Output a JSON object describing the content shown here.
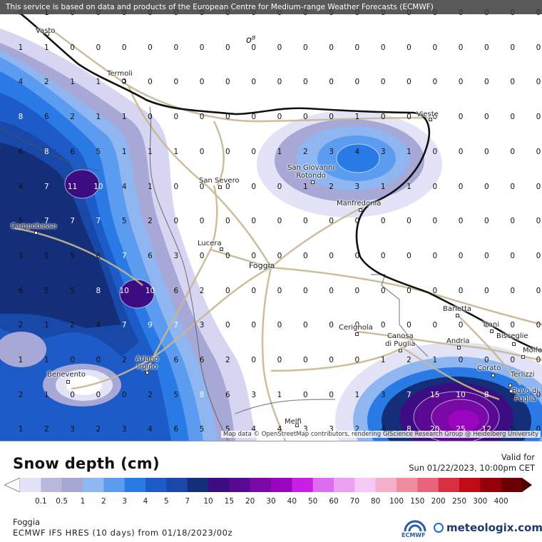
{
  "header": {
    "notice": "This service is based on data and products of the European Centre for Medium-range Weather Forecasts (ECMWF)"
  },
  "map": {
    "attribution": "Map data © OpenStreetMap contributors, rendering GIScience Research Group @ Heidelberg University",
    "cities": [
      {
        "name": "Vasto",
        "big": false
      },
      {
        "name": "Termoli",
        "big": false
      },
      {
        "name": "Vieste",
        "big": false
      },
      {
        "name": "San Giovanni\nRotondo",
        "big": false
      },
      {
        "name": "San Severo",
        "big": false
      },
      {
        "name": "Manfredonia",
        "big": false
      },
      {
        "name": "Campobasso",
        "big": false
      },
      {
        "name": "Lucera",
        "big": false
      },
      {
        "name": "Foggia",
        "big": true
      },
      {
        "name": "Barletta",
        "big": false
      },
      {
        "name": "Trani",
        "big": false
      },
      {
        "name": "Bisceglie",
        "big": false
      },
      {
        "name": "Molfe",
        "big": false
      },
      {
        "name": "Cerignola",
        "big": false
      },
      {
        "name": "Canosa\ndi Puglia",
        "big": false
      },
      {
        "name": "Andria",
        "big": false
      },
      {
        "name": "Benevento",
        "big": false
      },
      {
        "name": "Ariano\nIrpino",
        "big": false
      },
      {
        "name": "Corato",
        "big": false
      },
      {
        "name": "Terlizzi",
        "big": false
      },
      {
        "name": "Ruvo di\nPuglia",
        "big": false
      },
      {
        "name": "Melfi",
        "big": false
      }
    ],
    "grid_values": [
      [
        "0",
        "1",
        "0",
        "0",
        "0",
        "0",
        "0",
        "0",
        "0",
        "0",
        "0",
        "0",
        "0",
        "0",
        "0",
        "0",
        "0",
        "0",
        "0",
        "0",
        "0"
      ],
      [
        "1",
        "1",
        "0",
        "0",
        "0",
        "0",
        "0",
        "0",
        "0",
        "0",
        "0",
        "0",
        "0",
        "0",
        "0",
        "0",
        "0",
        "0",
        "0",
        "0",
        "0"
      ],
      [
        "4",
        "2",
        "1",
        "1",
        "0",
        "0",
        "0",
        "0",
        "0",
        "0",
        "0",
        "0",
        "0",
        "0",
        "0",
        "0",
        "0",
        "0",
        "0",
        "0",
        "0"
      ],
      [
        "8",
        "6",
        "2",
        "1",
        "1",
        "0",
        "0",
        "0",
        "0",
        "0",
        "0",
        "0",
        "0",
        "1",
        "0",
        "0",
        "0",
        "0",
        "0",
        "0",
        "0"
      ],
      [
        "6",
        "8",
        "6",
        "5",
        "1",
        "1",
        "1",
        "0",
        "0",
        "0",
        "1",
        "2",
        "3",
        "4",
        "3",
        "1",
        "0",
        "0",
        "0",
        "0",
        "0"
      ],
      [
        "4",
        "7",
        "11",
        "10",
        "4",
        "1",
        "0",
        "0",
        "0",
        "0",
        "0",
        "1",
        "2",
        "3",
        "1",
        "1",
        "0",
        "0",
        "0",
        "0",
        "0"
      ],
      [
        "5",
        "7",
        "7",
        "7",
        "5",
        "2",
        "0",
        "0",
        "0",
        "0",
        "0",
        "0",
        "0",
        "0",
        "0",
        "0",
        "0",
        "0",
        "0",
        "0",
        "0"
      ],
      [
        "3",
        "5",
        "5",
        "6",
        "7",
        "6",
        "3",
        "0",
        "0",
        "0",
        "0",
        "0",
        "0",
        "0",
        "0",
        "0",
        "0",
        "0",
        "0",
        "0",
        "0"
      ],
      [
        "6",
        "5",
        "5",
        "8",
        "10",
        "10",
        "6",
        "2",
        "0",
        "0",
        "0",
        "0",
        "0",
        "0",
        "0",
        "0",
        "0",
        "0",
        "0",
        "0",
        "0"
      ],
      [
        "2",
        "1",
        "2",
        "4",
        "7",
        "9",
        "7",
        "3",
        "0",
        "0",
        "0",
        "0",
        "0",
        "0",
        "0",
        "0",
        "0",
        "0",
        "0",
        "0",
        "0"
      ],
      [
        "1",
        "1",
        "0",
        "0",
        "2",
        "3",
        "6",
        "6",
        "2",
        "0",
        "0",
        "0",
        "0",
        "0",
        "1",
        "2",
        "1",
        "0",
        "0",
        "0",
        "0"
      ],
      [
        "2",
        "1",
        "0",
        "0",
        "0",
        "2",
        "5",
        "8",
        "6",
        "3",
        "1",
        "0",
        "0",
        "1",
        "3",
        "7",
        "15",
        "10",
        "8",
        "3",
        "0"
      ],
      [
        "1",
        "2",
        "3",
        "2",
        "3",
        "4",
        "6",
        "5",
        "5",
        "4",
        "4",
        "3",
        "3",
        "2",
        "4",
        "8",
        "20",
        "25",
        "12",
        "5",
        "0"
      ]
    ],
    "grid_columns": 21,
    "grid_rows": 13
  },
  "legend": {
    "title": "Snow depth (cm)",
    "valid_label": "Valid for",
    "valid_time": "Sun 01/22/2023, 10:00pm CET",
    "ticks": [
      "0.1",
      "0.5",
      "1",
      "2",
      "3",
      "4",
      "5",
      "7",
      "10",
      "15",
      "20",
      "30",
      "40",
      "50",
      "60",
      "70",
      "80",
      "100",
      "150",
      "200",
      "250",
      "300",
      "400"
    ],
    "colors": [
      "#e3e3f8",
      "#b8b8dc",
      "#a6a6d4",
      "#8fb6f0",
      "#5c9cf0",
      "#2a7ae6",
      "#1d5cc8",
      "#1848a8",
      "#142e7a",
      "#3c0c82",
      "#5a0a92",
      "#7a08a6",
      "#9a06be",
      "#c81ee6",
      "#dc6cf0",
      "#eca0f4",
      "#f6c8f4",
      "#f4b0c8",
      "#f08ca0",
      "#e8647a",
      "#d83040",
      "#c00a14",
      "#960008",
      "#6a0004"
    ]
  },
  "footer": {
    "location": "Foggia",
    "model": "ECMWF IFS HRES (10 days) from 01/18/2023/00z",
    "ecmwf_label": "ECMWF",
    "brand": "meteologix.com"
  }
}
